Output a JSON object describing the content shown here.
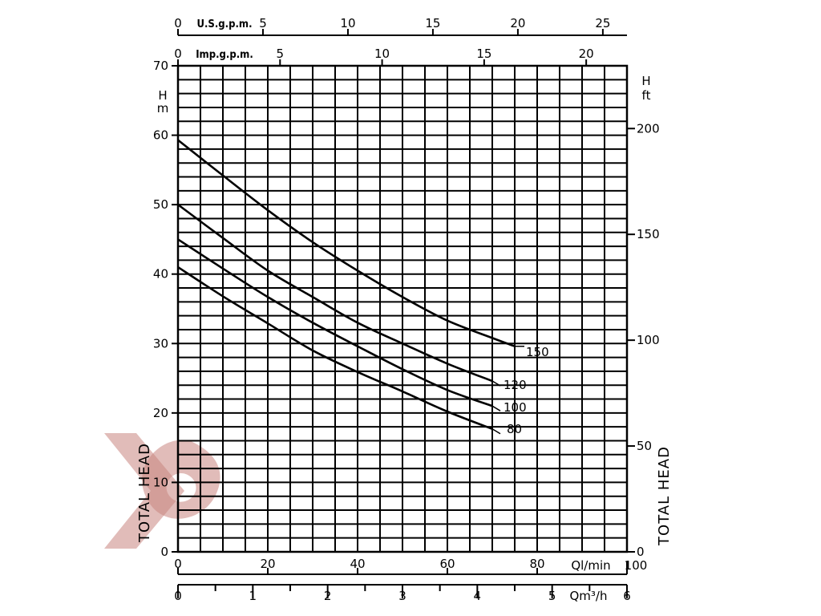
{
  "chart_data": {
    "type": "line",
    "x_unit": "Ql/min",
    "x_range": [
      0,
      100
    ],
    "y_unit_left": "H m",
    "y_range": [
      0,
      70
    ],
    "y_unit_right_top": "H",
    "y_unit_right_bottom": "ft",
    "y_left_label": "TOTAL HEAD",
    "y_right_label": "TOTAL HEAD",
    "grid": true,
    "ticks": {
      "lmin": [
        0,
        20,
        40,
        60,
        80
      ],
      "lmin_last": "100",
      "m3h": [
        "0",
        "1",
        "2",
        "3",
        "4",
        "5",
        "6"
      ],
      "m3h_unit": "Qm³/h",
      "head_m": [
        0,
        10,
        20,
        30,
        40,
        50,
        60,
        70
      ],
      "head_ft": [
        0,
        50,
        100,
        150,
        200
      ],
      "usgpm": [
        "0",
        "5",
        "10",
        "15",
        "20",
        "25"
      ],
      "usgpm_unit": "U.S.g.p.m.",
      "impgpm": [
        "0",
        "5",
        "10",
        "15",
        "20"
      ],
      "impgpm_unit": "Imp.g.p.m."
    },
    "series": [
      {
        "name": "150",
        "x": [
          0,
          10,
          20,
          30,
          40,
          50,
          60,
          70,
          75
        ],
        "y": [
          59.3,
          54.2,
          49.2,
          44.6,
          40.5,
          36.7,
          33.3,
          30.8,
          29.6
        ]
      },
      {
        "name": "120",
        "x": [
          0,
          10,
          20,
          30,
          40,
          50,
          60,
          70
        ],
        "y": [
          50.0,
          45.2,
          40.5,
          36.7,
          33.0,
          30.0,
          27.1,
          24.6
        ]
      },
      {
        "name": "100",
        "x": [
          0,
          10,
          20,
          30,
          40,
          50,
          60,
          70
        ],
        "y": [
          45.0,
          40.8,
          36.7,
          33.0,
          29.6,
          26.3,
          23.3,
          21.0
        ]
      },
      {
        "name": "80",
        "x": [
          0,
          10,
          20,
          30,
          40,
          50,
          60,
          70
        ],
        "y": [
          41.0,
          36.8,
          32.9,
          29.0,
          25.9,
          23.1,
          20.2,
          17.7
        ]
      }
    ]
  },
  "watermark": {
    "color": "#c9857f"
  }
}
